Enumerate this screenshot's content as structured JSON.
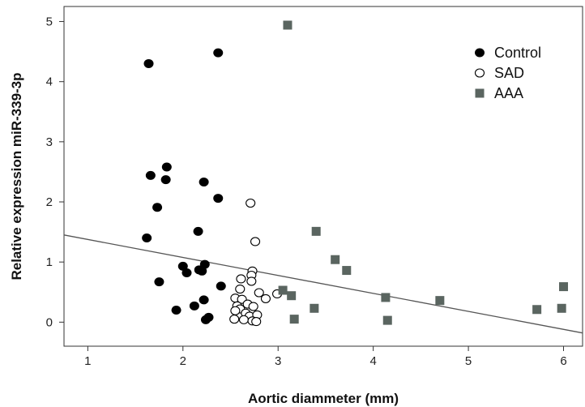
{
  "chart_data": {
    "type": "scatter",
    "title": "",
    "xlabel": "Aortic diammeter (mm)",
    "ylabel": "Relative expression miR-339-3p",
    "xlim": [
      0.75,
      6.2
    ],
    "ylim": [
      -0.4,
      5.25
    ],
    "xticks": [
      1,
      2,
      3,
      4,
      5,
      6
    ],
    "yticks": [
      0,
      1,
      2,
      3,
      4,
      5
    ],
    "grid": false,
    "legend_position": "top-right",
    "fit_line": {
      "x": [
        0.75,
        6.2
      ],
      "y": [
        1.45,
        -0.18
      ]
    },
    "series": [
      {
        "name": "Control",
        "marker": "filled-circle",
        "color": "#000000",
        "points": [
          [
            1.64,
            4.3
          ],
          [
            2.37,
            4.48
          ],
          [
            1.66,
            2.44
          ],
          [
            1.83,
            2.58
          ],
          [
            1.82,
            2.37
          ],
          [
            1.73,
            1.91
          ],
          [
            2.22,
            2.33
          ],
          [
            2.37,
            2.06
          ],
          [
            1.62,
            1.4
          ],
          [
            2.16,
            1.51
          ],
          [
            2.0,
            0.93
          ],
          [
            2.04,
            0.82
          ],
          [
            2.17,
            0.87
          ],
          [
            2.23,
            0.96
          ],
          [
            2.2,
            0.85
          ],
          [
            1.75,
            0.67
          ],
          [
            2.4,
            0.6
          ],
          [
            1.93,
            0.2
          ],
          [
            2.12,
            0.27
          ],
          [
            2.22,
            0.37
          ],
          [
            2.27,
            0.08
          ],
          [
            2.24,
            0.04
          ]
        ]
      },
      {
        "name": "SAD",
        "marker": "open-circle",
        "color": "#000000",
        "points": [
          [
            2.71,
            1.98
          ],
          [
            2.76,
            1.34
          ],
          [
            2.73,
            0.85
          ],
          [
            2.72,
            0.78
          ],
          [
            2.72,
            0.68
          ],
          [
            2.61,
            0.72
          ],
          [
            2.6,
            0.55
          ],
          [
            2.8,
            0.49
          ],
          [
            2.87,
            0.39
          ],
          [
            2.99,
            0.47
          ],
          [
            2.55,
            0.4
          ],
          [
            2.62,
            0.38
          ],
          [
            2.68,
            0.3
          ],
          [
            2.74,
            0.26
          ],
          [
            2.57,
            0.27
          ],
          [
            2.6,
            0.22
          ],
          [
            2.55,
            0.19
          ],
          [
            2.66,
            0.15
          ],
          [
            2.7,
            0.1
          ],
          [
            2.78,
            0.12
          ],
          [
            2.54,
            0.05
          ],
          [
            2.64,
            0.04
          ],
          [
            2.73,
            0.02
          ],
          [
            2.77,
            0.01
          ]
        ]
      },
      {
        "name": "AAA",
        "marker": "square",
        "color": "#5a6560",
        "points": [
          [
            3.1,
            4.94
          ],
          [
            3.4,
            1.51
          ],
          [
            3.6,
            1.04
          ],
          [
            3.72,
            0.86
          ],
          [
            3.05,
            0.53
          ],
          [
            3.14,
            0.44
          ],
          [
            3.38,
            0.23
          ],
          [
            3.17,
            0.05
          ],
          [
            4.13,
            0.41
          ],
          [
            4.15,
            0.03
          ],
          [
            4.7,
            0.36
          ],
          [
            5.72,
            0.21
          ],
          [
            5.98,
            0.23
          ],
          [
            6.0,
            0.59
          ]
        ]
      }
    ]
  }
}
